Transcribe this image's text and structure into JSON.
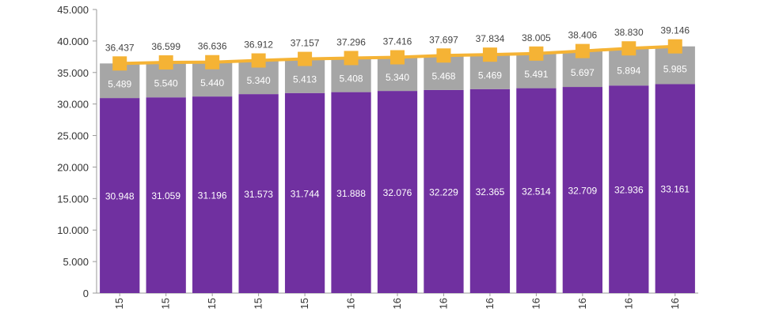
{
  "chart_data": {
    "type": "bar",
    "stacked": true,
    "categories": [
      "15",
      "15",
      "15",
      "15",
      "15",
      "16",
      "16",
      "16",
      "16",
      "16",
      "16",
      "16",
      "16"
    ],
    "series": [
      {
        "kind": "bar",
        "color": "#7030a0",
        "values": [
          30948,
          31059,
          31196,
          31573,
          31744,
          31888,
          32076,
          32229,
          32365,
          32514,
          32709,
          32936,
          33161
        ],
        "labels": [
          "30.948",
          "31.059",
          "31.196",
          "31.573",
          "31.744",
          "31.888",
          "32.076",
          "32.229",
          "32.365",
          "32.514",
          "32.709",
          "32.936",
          "33.161"
        ]
      },
      {
        "kind": "bar",
        "color": "#a6a6a6",
        "values": [
          5489,
          5540,
          5440,
          5340,
          5413,
          5408,
          5340,
          5468,
          5469,
          5491,
          5697,
          5894,
          5985
        ],
        "labels": [
          "5.489",
          "5.540",
          "5.440",
          "5.340",
          "5.413",
          "5.408",
          "5.340",
          "5.468",
          "5.469",
          "5.491",
          "5.697",
          "5.894",
          "5.985"
        ]
      },
      {
        "kind": "line",
        "color": "#f5b335",
        "values": [
          36437,
          36599,
          36636,
          36912,
          37157,
          37296,
          37416,
          37697,
          37834,
          38005,
          38406,
          38830,
          39146
        ],
        "labels": [
          "36.437",
          "36.599",
          "36.636",
          "36.912",
          "37.157",
          "37.296",
          "37.416",
          "37.697",
          "37.834",
          "38.005",
          "38.406",
          "38.830",
          "39.146"
        ]
      }
    ],
    "ylim": [
      0,
      45000
    ],
    "yticks": [
      0,
      5000,
      10000,
      15000,
      20000,
      25000,
      30000,
      35000,
      40000,
      45000
    ],
    "ytick_labels": [
      "0",
      "5.000",
      "10.000",
      "15.000",
      "20.000",
      "25.000",
      "30.000",
      "35.000",
      "40.000",
      "45.000"
    ],
    "grid": false
  }
}
